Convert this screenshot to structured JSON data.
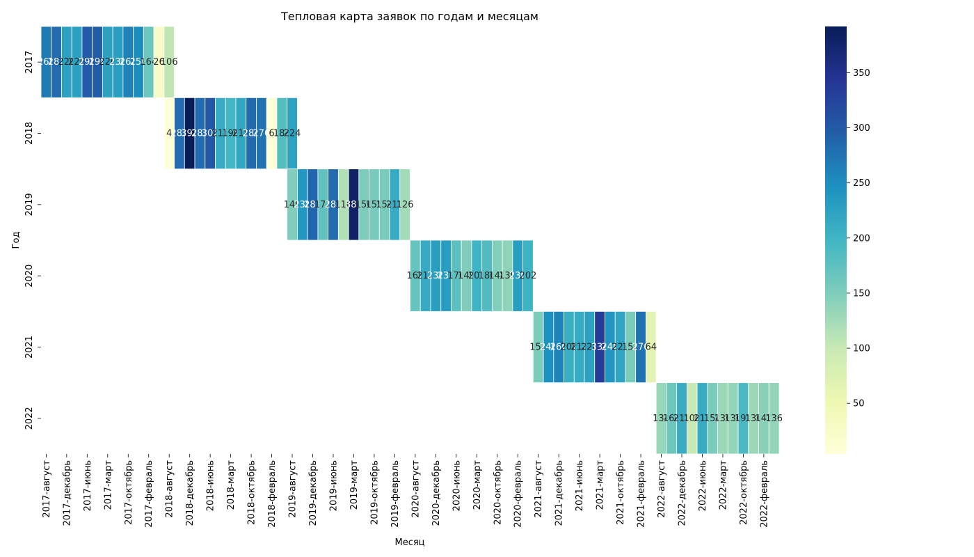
{
  "chart_data": {
    "type": "heatmap",
    "title": "Тепловая карта заявок по годам и месяцам",
    "xlabel": "Месяц",
    "ylabel": "Год",
    "colormap": "YlGnBu",
    "color_range": [
      4,
      392
    ],
    "colorbar_ticks": [
      50,
      100,
      150,
      200,
      250,
      300,
      350
    ],
    "years": [
      "2017",
      "2018",
      "2019",
      "2020",
      "2021",
      "2022"
    ],
    "x_tick_labels": [
      "2017-август",
      "2017-декабрь",
      "2017-июнь",
      "2017-март",
      "2017-октябрь",
      "2017-февраль",
      "2018-август",
      "2018-декабрь",
      "2018-июнь",
      "2018-март",
      "2018-октябрь",
      "2018-февраль",
      "2019-август",
      "2019-декабрь",
      "2019-июнь",
      "2019-март",
      "2019-октябрь",
      "2019-февраль",
      "2020-август",
      "2020-декабрь",
      "2020-июнь",
      "2020-март",
      "2020-октябрь",
      "2020-февраль",
      "2021-август",
      "2021-декабрь",
      "2021-июнь",
      "2021-март",
      "2021-октябрь",
      "2021-февраль",
      "2022-август",
      "2022-декабрь",
      "2022-июнь",
      "2022-март",
      "2022-октябрь",
      "2022-февраль"
    ],
    "rows": [
      {
        "year": "2017",
        "start_col": 0,
        "values": [
          268,
          283,
          226,
          226,
          298,
          298,
          226,
          230,
          262,
          250,
          164,
          26,
          106
        ]
      },
      {
        "year": "2018",
        "start_col": 12,
        "values": [
          4,
          283,
          392,
          283,
          302,
          211,
          196,
          218,
          284,
          276,
          6,
          184,
          224
        ]
      },
      {
        "year": "2019",
        "start_col": 24,
        "values": [
          149,
          238,
          287,
          172,
          283,
          116,
          381,
          150,
          155,
          154,
          212,
          126
        ]
      },
      {
        "year": "2020",
        "start_col": 36,
        "values": [
          169,
          212,
          230,
          231,
          176,
          149,
          201,
          186,
          148,
          139,
          230,
          202
        ]
      },
      {
        "year": "2021",
        "start_col": 48,
        "values": [
          152,
          246,
          260,
          208,
          212,
          226,
          334,
          240,
          221,
          152,
          276,
          64
        ]
      },
      {
        "year": "2022",
        "start_col": 60,
        "values": [
          134,
          164,
          211,
          100,
          211,
          154,
          130,
          136,
          191,
          130,
          142,
          136
        ]
      }
    ]
  }
}
